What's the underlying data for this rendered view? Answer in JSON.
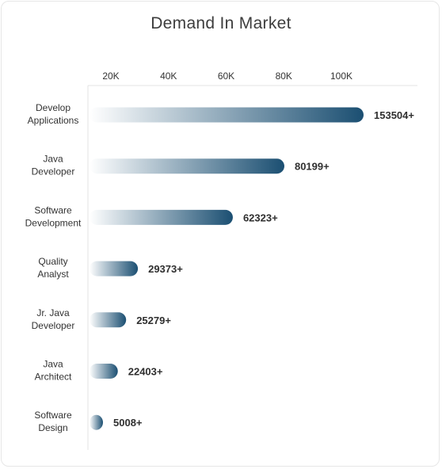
{
  "chart_data": {
    "type": "bar",
    "orientation": "horizontal",
    "title": "Demand In Market",
    "xlabel": "",
    "ylabel": "",
    "categories": [
      "Develop Applications",
      "Java Developer",
      "Software Development",
      "Quality Analyst",
      "Jr. Java Developer",
      "Java Architect",
      "Software Design"
    ],
    "values": [
      153504,
      80199,
      62323,
      29373,
      25279,
      22403,
      5008
    ],
    "data_labels": [
      "153504+",
      "80199+",
      "62323+",
      "29373+",
      "25279+",
      "22403+",
      "5008+"
    ],
    "x_ticks": [
      20000,
      40000,
      60000,
      80000,
      100000
    ],
    "x_tick_labels": [
      "20K",
      "40K",
      "60K",
      "80K",
      "100K"
    ],
    "legend": "none",
    "grid": false,
    "colors": {
      "bar_start": "#ffffff",
      "bar_end": "#1b4f72",
      "axis": "#e3e3e3",
      "text": "#333333"
    }
  }
}
